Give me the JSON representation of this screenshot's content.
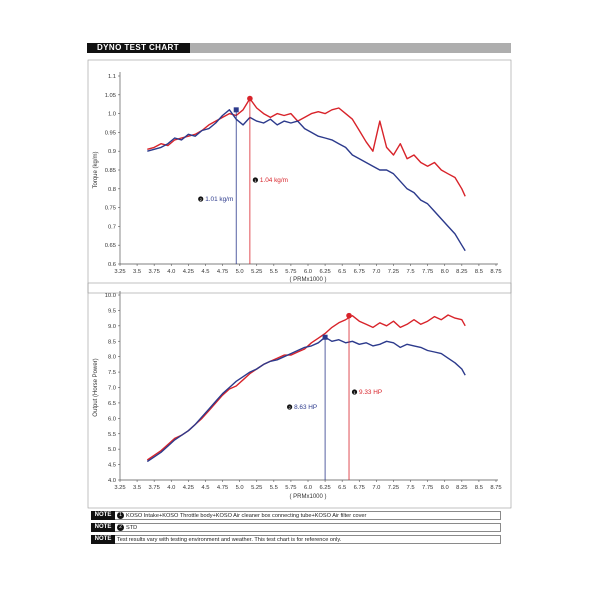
{
  "header": {
    "title": "DYNO TEST CHART"
  },
  "chart_data": [
    {
      "type": "line",
      "ylabel": "Torque (kg/m)",
      "xlabel": "( PRMx1000 )",
      "xlim": [
        3.25,
        8.75
      ],
      "ylim": [
        0.6,
        1.1
      ],
      "x_ticks": [
        "3.25",
        "3.5",
        "3.75",
        "4.0",
        "4.25",
        "4.5",
        "4.75",
        "5.0",
        "5.25",
        "5.5",
        "5.75",
        "6.0",
        "6.25",
        "6.5",
        "6.75",
        "7.0",
        "7.25",
        "7.5",
        "7.75",
        "8.0",
        "8.25",
        "8.5",
        "8.75"
      ],
      "y_ticks": [
        "0.6",
        "0.65",
        "0.7",
        "0.75",
        "0.8",
        "0.85",
        "0.9",
        "0.95",
        "1.0",
        "1.05",
        "1.1"
      ],
      "series": [
        {
          "color": "#d8232a",
          "x": [
            3.65,
            3.75,
            3.85,
            3.95,
            4.05,
            4.15,
            4.25,
            4.35,
            4.45,
            4.55,
            4.65,
            4.75,
            4.85,
            4.95,
            5.05,
            5.15,
            5.25,
            5.35,
            5.45,
            5.55,
            5.65,
            5.75,
            5.85,
            5.95,
            6.05,
            6.15,
            6.25,
            6.35,
            6.45,
            6.55,
            6.65,
            6.75,
            6.85,
            6.95,
            7.05,
            7.15,
            7.25,
            7.35,
            7.45,
            7.55,
            7.65,
            7.75,
            7.85,
            7.95,
            8.05,
            8.15,
            8.25,
            8.3
          ],
          "y": [
            0.905,
            0.91,
            0.92,
            0.915,
            0.93,
            0.935,
            0.94,
            0.945,
            0.955,
            0.97,
            0.98,
            0.99,
            1.0,
            0.995,
            1.01,
            1.04,
            1.015,
            1.0,
            0.99,
            1.0,
            0.995,
            1.0,
            0.98,
            0.99,
            1.0,
            1.005,
            1.0,
            1.01,
            1.015,
            1.0,
            0.985,
            0.955,
            0.925,
            0.9,
            0.98,
            0.91,
            0.89,
            0.92,
            0.88,
            0.89,
            0.87,
            0.86,
            0.87,
            0.85,
            0.84,
            0.83,
            0.8,
            0.78
          ]
        },
        {
          "color": "#2c3a8c",
          "x": [
            3.65,
            3.75,
            3.85,
            3.95,
            4.05,
            4.15,
            4.25,
            4.35,
            4.45,
            4.55,
            4.65,
            4.75,
            4.85,
            4.95,
            5.05,
            5.15,
            5.25,
            5.35,
            5.45,
            5.55,
            5.65,
            5.75,
            5.85,
            5.95,
            6.05,
            6.15,
            6.25,
            6.35,
            6.45,
            6.55,
            6.65,
            6.75,
            6.85,
            6.95,
            7.05,
            7.15,
            7.25,
            7.35,
            7.45,
            7.55,
            7.65,
            7.75,
            7.85,
            7.95,
            8.05,
            8.15,
            8.25,
            8.3
          ],
          "y": [
            0.9,
            0.905,
            0.91,
            0.92,
            0.935,
            0.93,
            0.945,
            0.94,
            0.955,
            0.96,
            0.975,
            0.995,
            1.01,
            0.985,
            0.97,
            0.99,
            0.98,
            0.975,
            0.985,
            0.97,
            0.98,
            0.975,
            0.98,
            0.96,
            0.95,
            0.94,
            0.935,
            0.93,
            0.92,
            0.91,
            0.89,
            0.88,
            0.87,
            0.86,
            0.85,
            0.85,
            0.84,
            0.82,
            0.8,
            0.79,
            0.77,
            0.76,
            0.74,
            0.72,
            0.7,
            0.68,
            0.65,
            0.635
          ]
        }
      ],
      "peaks": [
        {
          "x": 4.95,
          "y": 1.01,
          "label": "1.01 kg/m",
          "num": "2",
          "color": "#2c3a8c"
        },
        {
          "x": 5.15,
          "y": 1.04,
          "label": "1.04 kg/m",
          "num": "1",
          "color": "#d8232a"
        }
      ]
    },
    {
      "type": "line",
      "ylabel": "Output (Horse Power)",
      "xlabel": "( PRMx1000 )",
      "xlim": [
        3.25,
        8.75
      ],
      "ylim": [
        4.0,
        10.0
      ],
      "x_ticks": [
        "3.25",
        "3.5",
        "3.75",
        "4.0",
        "4.25",
        "4.5",
        "4.75",
        "5.0",
        "5.25",
        "5.5",
        "5.75",
        "6.0",
        "6.25",
        "6.5",
        "6.75",
        "7.0",
        "7.25",
        "7.5",
        "7.75",
        "8.0",
        "8.25",
        "8.5",
        "8.75"
      ],
      "y_ticks": [
        "4.0",
        "4.5",
        "5.0",
        "5.5",
        "6.0",
        "6.5",
        "7.0",
        "7.5",
        "8.0",
        "8.5",
        "9.0",
        "9.5",
        "10.0"
      ],
      "series": [
        {
          "color": "#d8232a",
          "x": [
            3.65,
            3.75,
            3.85,
            3.95,
            4.05,
            4.15,
            4.25,
            4.35,
            4.45,
            4.55,
            4.65,
            4.75,
            4.85,
            4.95,
            5.05,
            5.15,
            5.25,
            5.35,
            5.45,
            5.55,
            5.65,
            5.75,
            5.85,
            5.95,
            6.05,
            6.15,
            6.25,
            6.35,
            6.45,
            6.55,
            6.65,
            6.75,
            6.85,
            6.95,
            7.05,
            7.15,
            7.25,
            7.35,
            7.45,
            7.55,
            7.65,
            7.75,
            7.85,
            7.95,
            8.05,
            8.15,
            8.25,
            8.3
          ],
          "y": [
            4.65,
            4.8,
            4.95,
            5.15,
            5.35,
            5.45,
            5.6,
            5.8,
            6.0,
            6.25,
            6.5,
            6.75,
            6.95,
            7.05,
            7.25,
            7.45,
            7.6,
            7.75,
            7.85,
            7.95,
            8.05,
            8.05,
            8.15,
            8.25,
            8.45,
            8.6,
            8.75,
            8.95,
            9.1,
            9.2,
            9.33,
            9.15,
            9.05,
            8.95,
            9.1,
            9.0,
            9.15,
            8.95,
            9.05,
            9.2,
            9.05,
            9.15,
            9.3,
            9.2,
            9.35,
            9.25,
            9.2,
            9.0
          ]
        },
        {
          "color": "#2c3a8c",
          "x": [
            3.65,
            3.75,
            3.85,
            3.95,
            4.05,
            4.15,
            4.25,
            4.35,
            4.45,
            4.55,
            4.65,
            4.75,
            4.85,
            4.95,
            5.05,
            5.15,
            5.25,
            5.35,
            5.45,
            5.55,
            5.65,
            5.75,
            5.85,
            5.95,
            6.05,
            6.15,
            6.25,
            6.35,
            6.45,
            6.55,
            6.65,
            6.75,
            6.85,
            6.95,
            7.05,
            7.15,
            7.25,
            7.35,
            7.45,
            7.55,
            7.65,
            7.75,
            7.85,
            7.95,
            8.05,
            8.15,
            8.25,
            8.3
          ],
          "y": [
            4.6,
            4.75,
            4.9,
            5.1,
            5.3,
            5.45,
            5.6,
            5.8,
            6.05,
            6.3,
            6.55,
            6.8,
            7.0,
            7.2,
            7.35,
            7.5,
            7.6,
            7.75,
            7.85,
            7.9,
            8.0,
            8.1,
            8.2,
            8.3,
            8.35,
            8.45,
            8.63,
            8.5,
            8.55,
            8.45,
            8.5,
            8.4,
            8.45,
            8.35,
            8.4,
            8.5,
            8.45,
            8.3,
            8.4,
            8.35,
            8.3,
            8.2,
            8.15,
            8.1,
            7.95,
            7.8,
            7.6,
            7.4
          ]
        }
      ],
      "peaks": [
        {
          "x": 6.25,
          "y": 8.63,
          "label": "8.63 HP",
          "num": "2",
          "color": "#2c3a8c"
        },
        {
          "x": 6.6,
          "y": 9.33,
          "label": "9.33 HP",
          "num": "1",
          "color": "#d8232a"
        }
      ]
    }
  ],
  "notes": [
    {
      "tag": "NOTE",
      "num": "1",
      "text": "KOSO Intake+KOSO Throttle body+KOSO Air cleaner box connecting tube+KOSO Air filter cover"
    },
    {
      "tag": "NOTE",
      "num": "2",
      "text": "STD"
    },
    {
      "tag": "NOTE",
      "num": "",
      "text": "Test results vary with testing environment and weather. This test chart is for reference only."
    }
  ]
}
